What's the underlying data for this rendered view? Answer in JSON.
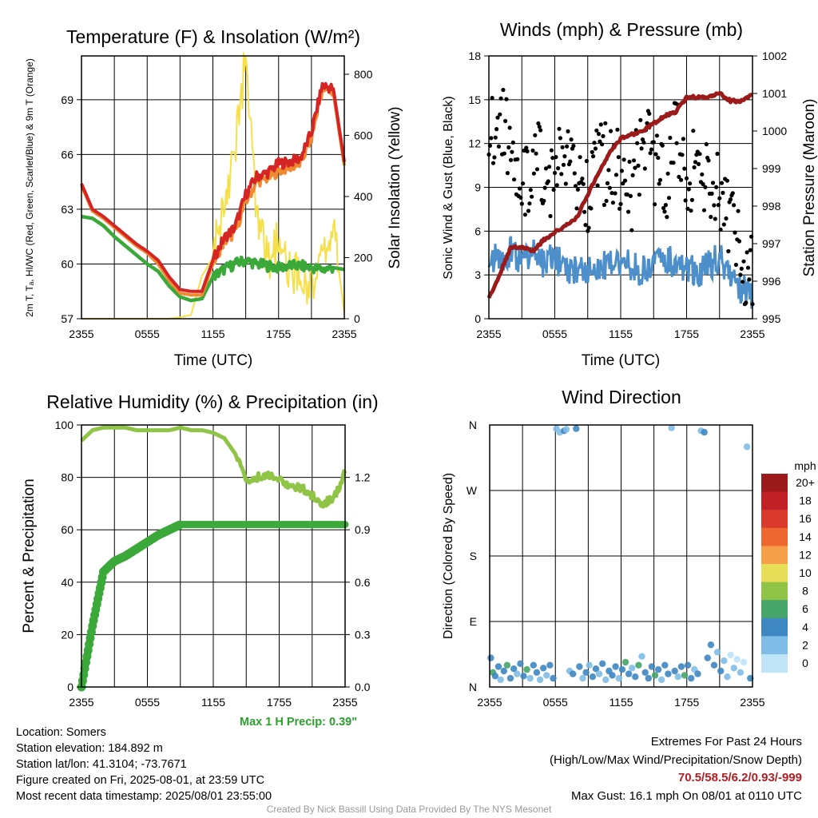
{
  "panels": {
    "temp": {
      "title": "Temperature (F) & Insolation (W/m²)",
      "ylabel_left": "2m T, Tₐ, HI/WC (Red, Green, Scarlet/Blue) & 9m T (Orange)",
      "ylabel_right": "Solar Insolation (Yellow)",
      "xlabel": "Time (UTC)"
    },
    "wind": {
      "title": "Winds (mph) & Pressure (mb)",
      "ylabel_left": "Sonic Wind & Gust (Blue, Black)",
      "ylabel_right": "Station Pressure (Maroon)",
      "xlabel": "Time (UTC)"
    },
    "rh": {
      "title": "Relative Humidity (%) & Precipitation (in)",
      "ylabel_left": "Percent & Precipitation",
      "max_precip": "Max 1 H Precip: 0.39\""
    },
    "dir": {
      "title": "Wind Direction",
      "ylabel_left": "Direction (Colored By Speed)"
    }
  },
  "colorbar": {
    "unit": "mph",
    "labels": [
      "20+",
      "18",
      "16",
      "14",
      "12",
      "10",
      "8",
      "6",
      "4",
      "2",
      "0"
    ],
    "colors": [
      "#9b1b1b",
      "#c02026",
      "#d93a2b",
      "#ee6630",
      "#f5a048",
      "#e8dd57",
      "#8fc447",
      "#45a56a",
      "#3e87c2",
      "#7fbde6",
      "#bfe3f7"
    ]
  },
  "station_info": [
    "Location: Somers",
    "Station elevation: 184.892 m",
    "Station lat/lon: 41.3104; -73.7671",
    "Figure created on Fri, 2025-08-01, at 23:59 UTC",
    "Most recent data timestamp: 2025/08/01 23:55:00"
  ],
  "extremes": {
    "line1": "Extremes For Past 24 Hours",
    "line2": "(High/Low/Max Wind/Precipitation/Snow Depth)",
    "values": "70.5/58.5/6.2/0.93/-999",
    "max_gust": "Max Gust: 16.1 mph On 08/01 at 0110 UTC"
  },
  "credit": "Created By Nick Bassill Using Data Provided By The NYS Mesonet",
  "chart_data": [
    {
      "type": "line",
      "title": "Temperature (F) & Insolation (W/m²)",
      "xlabel": "Time (UTC)",
      "xticks": [
        "2355",
        "0555",
        "1155",
        "1755",
        "2355"
      ],
      "x_hours": [
        0,
        1,
        2,
        3,
        4,
        5,
        6,
        7,
        8,
        9,
        10,
        11,
        12,
        13,
        14,
        15,
        16,
        17,
        18,
        19,
        20,
        21,
        22,
        23,
        24
      ],
      "ylim": [
        57,
        71.4
      ],
      "yticks": [
        57,
        60,
        63,
        66,
        69
      ],
      "y2lim": [
        0,
        860
      ],
      "y2ticks": [
        0,
        200,
        400,
        600,
        800
      ],
      "series": [
        {
          "name": "2m T",
          "axis": "left",
          "color": "#d42424",
          "values": [
            64.4,
            63.0,
            62.6,
            62.1,
            61.6,
            61.1,
            60.7,
            60.2,
            59.3,
            58.6,
            58.5,
            58.5,
            60.2,
            61.4,
            62.0,
            63.8,
            64.8,
            65.0,
            65.5,
            65.6,
            65.8,
            67.2,
            69.8,
            69.6,
            65.6
          ]
        },
        {
          "name": "9m T",
          "axis": "left",
          "color": "#f08a30",
          "values": [
            64.3,
            62.9,
            62.5,
            62.0,
            61.5,
            61.0,
            60.6,
            60.0,
            59.1,
            58.4,
            58.3,
            58.3,
            60.0,
            61.2,
            61.7,
            63.4,
            64.5,
            64.7,
            65.1,
            65.3,
            65.5,
            66.9,
            69.6,
            69.4,
            65.4
          ]
        },
        {
          "name": "Td",
          "axis": "left",
          "color": "#3aa93a",
          "values": [
            62.6,
            62.5,
            62.1,
            61.5,
            61.0,
            60.5,
            60.0,
            59.6,
            58.8,
            58.2,
            58.0,
            58.1,
            59.3,
            59.7,
            60.0,
            60.2,
            60.0,
            59.9,
            59.8,
            59.9,
            59.9,
            59.8,
            59.7,
            59.8,
            59.7
          ]
        },
        {
          "name": "Solar Insolation",
          "axis": "right",
          "color": "#f6e04a",
          "values": [
            0,
            0,
            0,
            0,
            0,
            0,
            0,
            0,
            0,
            5,
            12,
            140,
            200,
            380,
            560,
            850,
            320,
            180,
            250,
            150,
            130,
            120,
            190,
            300,
            20
          ]
        }
      ]
    },
    {
      "type": "line",
      "title": "Winds (mph) & Pressure (mb)",
      "xlabel": "Time (UTC)",
      "xticks": [
        "2355",
        "0555",
        "1155",
        "1755",
        "2355"
      ],
      "x_hours": [
        0,
        1,
        2,
        3,
        4,
        5,
        6,
        7,
        8,
        9,
        10,
        11,
        12,
        13,
        14,
        15,
        16,
        17,
        18,
        19,
        20,
        21,
        22,
        23,
        24
      ],
      "ylim": [
        0,
        18
      ],
      "yticks": [
        0,
        3,
        6,
        9,
        12,
        15,
        18
      ],
      "y2lim": [
        995,
        1002
      ],
      "y2ticks": [
        995,
        996,
        997,
        998,
        999,
        1000,
        1001,
        1002
      ],
      "series": [
        {
          "name": "Sonic Wind",
          "axis": "left",
          "color": "#4c8fcb",
          "values": [
            4.5,
            4.0,
            4.6,
            3.9,
            4.5,
            3.8,
            4.2,
            3.4,
            3.5,
            3.4,
            3.2,
            3.9,
            4.0,
            3.5,
            3.3,
            3.8,
            4.2,
            3.6,
            3.3,
            3.2,
            3.6,
            4.2,
            2.8,
            2.0,
            1.6
          ]
        },
        {
          "name": "Gust",
          "axis": "left",
          "color": "#000000",
          "values": [
            12,
            14,
            11,
            9,
            10,
            11,
            9,
            12,
            10,
            8,
            11,
            10,
            10,
            9,
            12,
            11,
            9,
            13,
            10,
            11,
            9,
            9,
            6,
            4,
            3
          ]
        },
        {
          "name": "Station Pressure",
          "axis": "right",
          "color": "#9b1b1b",
          "values": [
            995.55,
            996.2,
            996.9,
            996.9,
            996.8,
            997.1,
            997.3,
            997.5,
            997.7,
            998.3,
            998.9,
            999.4,
            999.8,
            999.9,
            1000.0,
            1000.2,
            1000.4,
            1000.5,
            1000.9,
            1000.9,
            1000.9,
            1001.0,
            1000.8,
            1000.8,
            1001.0
          ]
        }
      ]
    },
    {
      "type": "line",
      "title": "Relative Humidity (%) & Precipitation (in)",
      "xticks": [
        "2355",
        "0555",
        "1155",
        "1755",
        "2355"
      ],
      "x_hours": [
        0,
        1,
        2,
        3,
        4,
        5,
        6,
        7,
        8,
        9,
        10,
        11,
        12,
        13,
        14,
        15,
        16,
        17,
        18,
        19,
        20,
        21,
        22,
        23,
        24
      ],
      "ylim": [
        0,
        100
      ],
      "yticks": [
        0,
        20,
        40,
        60,
        80,
        100
      ],
      "y2lim": [
        0,
        1.5
      ],
      "y2ticks": [
        0.0,
        0.3,
        0.6,
        0.9,
        1.2
      ],
      "series": [
        {
          "name": "Relative Humidity",
          "axis": "left",
          "color": "#8fc447",
          "values": [
            94,
            98,
            99,
            99,
            99,
            98,
            98,
            98,
            98,
            99,
            98,
            98,
            97,
            95,
            89,
            79,
            80,
            81,
            79,
            77,
            76,
            73,
            70,
            72,
            82
          ]
        },
        {
          "name": "Precipitation",
          "axis": "right",
          "color": "#3aa93a",
          "values": [
            0.0,
            0.35,
            0.66,
            0.72,
            0.75,
            0.79,
            0.83,
            0.87,
            0.9,
            0.93,
            0.93,
            0.93,
            0.93,
            0.93,
            0.93,
            0.93,
            0.93,
            0.93,
            0.93,
            0.93,
            0.93,
            0.93,
            0.93,
            0.93,
            0.93
          ]
        }
      ]
    },
    {
      "type": "scatter",
      "title": "Wind Direction",
      "xticks": [
        "2355",
        "0555",
        "1155",
        "1755",
        "2355"
      ],
      "ylim": [
        0,
        360
      ],
      "yticks": [
        "N",
        "E",
        "S",
        "W",
        "N"
      ],
      "points": [
        {
          "x": 0.1,
          "y": 40,
          "speed": 4
        },
        {
          "x": 0.3,
          "y": 20,
          "speed": 6
        },
        {
          "x": 0.5,
          "y": 15,
          "speed": 4
        },
        {
          "x": 0.8,
          "y": 28,
          "speed": 4
        },
        {
          "x": 1.0,
          "y": 10,
          "speed": 2
        },
        {
          "x": 1.3,
          "y": 22,
          "speed": 4
        },
        {
          "x": 1.6,
          "y": 30,
          "speed": 6
        },
        {
          "x": 1.9,
          "y": 12,
          "speed": 4
        },
        {
          "x": 2.2,
          "y": 25,
          "speed": 4
        },
        {
          "x": 2.5,
          "y": 18,
          "speed": 2
        },
        {
          "x": 2.8,
          "y": 32,
          "speed": 4
        },
        {
          "x": 3.1,
          "y": 15,
          "speed": 4
        },
        {
          "x": 3.4,
          "y": 24,
          "speed": 6
        },
        {
          "x": 3.7,
          "y": 12,
          "speed": 2
        },
        {
          "x": 4.0,
          "y": 30,
          "speed": 4
        },
        {
          "x": 4.3,
          "y": 20,
          "speed": 4
        },
        {
          "x": 4.6,
          "y": 10,
          "speed": 2
        },
        {
          "x": 4.9,
          "y": 26,
          "speed": 4
        },
        {
          "x": 5.2,
          "y": 16,
          "speed": 2
        },
        {
          "x": 5.5,
          "y": 30,
          "speed": 4
        },
        {
          "x": 5.8,
          "y": 12,
          "speed": 4
        },
        {
          "x": 6.1,
          "y": 355,
          "speed": 2
        },
        {
          "x": 6.4,
          "y": 350,
          "speed": 2
        },
        {
          "x": 6.8,
          "y": 352,
          "speed": 4
        },
        {
          "x": 7.0,
          "y": 354,
          "speed": 2
        },
        {
          "x": 7.3,
          "y": 22,
          "speed": 2
        },
        {
          "x": 7.6,
          "y": 18,
          "speed": 4
        },
        {
          "x": 7.9,
          "y": 355,
          "speed": 4
        },
        {
          "x": 8.2,
          "y": 28,
          "speed": 4
        },
        {
          "x": 8.5,
          "y": 12,
          "speed": 2
        },
        {
          "x": 8.8,
          "y": 20,
          "speed": 4
        },
        {
          "x": 9.1,
          "y": 30,
          "speed": 2
        },
        {
          "x": 9.4,
          "y": 14,
          "speed": 4
        },
        {
          "x": 9.7,
          "y": 25,
          "speed": 4
        },
        {
          "x": 10.0,
          "y": 18,
          "speed": 2
        },
        {
          "x": 10.3,
          "y": 32,
          "speed": 4
        },
        {
          "x": 10.6,
          "y": 10,
          "speed": 2
        },
        {
          "x": 10.9,
          "y": 22,
          "speed": 4
        },
        {
          "x": 11.2,
          "y": 16,
          "speed": 4
        },
        {
          "x": 11.5,
          "y": 28,
          "speed": 4
        },
        {
          "x": 11.8,
          "y": 12,
          "speed": 2
        },
        {
          "x": 12.1,
          "y": 24,
          "speed": 4
        },
        {
          "x": 12.4,
          "y": 34,
          "speed": 6
        },
        {
          "x": 12.7,
          "y": 18,
          "speed": 4
        },
        {
          "x": 13.0,
          "y": 26,
          "speed": 2
        },
        {
          "x": 13.3,
          "y": 14,
          "speed": 4
        },
        {
          "x": 13.6,
          "y": 30,
          "speed": 6
        },
        {
          "x": 13.9,
          "y": 42,
          "speed": 2
        },
        {
          "x": 14.2,
          "y": 20,
          "speed": 4
        },
        {
          "x": 14.5,
          "y": 12,
          "speed": 4
        },
        {
          "x": 14.8,
          "y": 28,
          "speed": 4
        },
        {
          "x": 15.1,
          "y": 16,
          "speed": 6
        },
        {
          "x": 15.4,
          "y": 24,
          "speed": 4
        },
        {
          "x": 15.7,
          "y": 10,
          "speed": 2
        },
        {
          "x": 16.0,
          "y": 30,
          "speed": 4
        },
        {
          "x": 16.3,
          "y": 18,
          "speed": 4
        },
        {
          "x": 16.6,
          "y": 356,
          "speed": 2
        },
        {
          "x": 16.9,
          "y": 22,
          "speed": 4
        },
        {
          "x": 17.2,
          "y": 14,
          "speed": 2
        },
        {
          "x": 17.5,
          "y": 28,
          "speed": 4
        },
        {
          "x": 17.8,
          "y": 16,
          "speed": 6
        },
        {
          "x": 18.1,
          "y": 30,
          "speed": 4
        },
        {
          "x": 18.4,
          "y": 12,
          "speed": 4
        },
        {
          "x": 18.7,
          "y": 24,
          "speed": 2
        },
        {
          "x": 19.0,
          "y": 18,
          "speed": 4
        },
        {
          "x": 19.3,
          "y": 352,
          "speed": 2
        },
        {
          "x": 19.6,
          "y": 350,
          "speed": 4
        },
        {
          "x": 19.9,
          "y": 40,
          "speed": 4
        },
        {
          "x": 20.2,
          "y": 58,
          "speed": 4
        },
        {
          "x": 20.5,
          "y": 30,
          "speed": 4
        },
        {
          "x": 20.8,
          "y": 48,
          "speed": 2
        },
        {
          "x": 21.1,
          "y": 22,
          "speed": 4
        },
        {
          "x": 21.4,
          "y": 36,
          "speed": 2
        },
        {
          "x": 21.7,
          "y": 14,
          "speed": 2
        },
        {
          "x": 22.0,
          "y": 44,
          "speed": 0
        },
        {
          "x": 22.3,
          "y": 26,
          "speed": 2
        },
        {
          "x": 22.6,
          "y": 38,
          "speed": 0
        },
        {
          "x": 22.9,
          "y": 20,
          "speed": 2
        },
        {
          "x": 23.2,
          "y": 34,
          "speed": 0
        },
        {
          "x": 23.5,
          "y": 330,
          "speed": 2
        },
        {
          "x": 23.8,
          "y": 12,
          "speed": 4
        }
      ]
    }
  ]
}
